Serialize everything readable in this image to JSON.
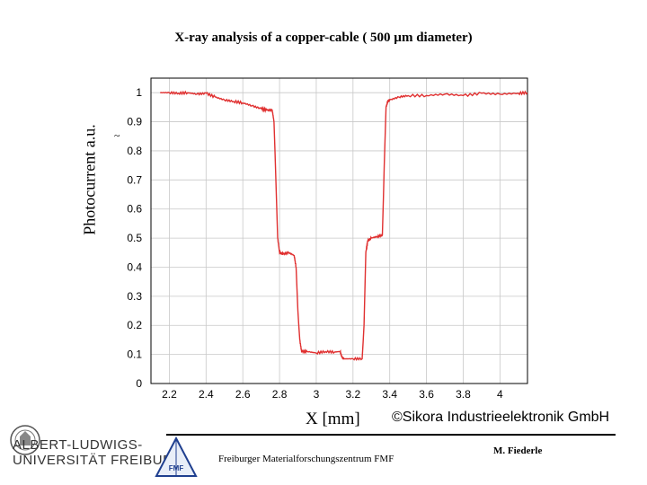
{
  "header": {
    "title": "X-ray analysis of a copper-cable ( 500 µm diameter)"
  },
  "axes": {
    "ylabel": "Photocurrent a.u.",
    "xlabel": "X [mm]",
    "stray_mark": "~"
  },
  "footer": {
    "credit": "©Sikora Industrieelektronik GmbH",
    "university_line1": "ALBERT-LUDWIGS-",
    "university_line2": "UNIVERSITÄT FREIBURG",
    "fmf_logo_text": "FMF",
    "center": "Freiburger Materialforschungszentrum FMF",
    "author": "M. Fiederle"
  },
  "colors": {
    "line": "#e03030",
    "grid": "#c8c8c8",
    "axis": "#000000"
  },
  "chart_data": {
    "type": "line",
    "title": "X-ray analysis of a copper-cable ( 500 µm diameter)",
    "xlabel": "X [mm]",
    "ylabel": "Photocurrent a.u.",
    "xlim": [
      2.1,
      4.15
    ],
    "ylim": [
      0,
      1.05
    ],
    "xticks": [
      2.2,
      2.4,
      2.6,
      2.8,
      3,
      3.2,
      3.4,
      3.6,
      3.8,
      4
    ],
    "yticks": [
      0,
      0.1,
      0.2,
      0.3,
      0.4,
      0.5,
      0.6,
      0.7,
      0.8,
      0.9,
      1
    ],
    "grid": true,
    "series": [
      {
        "x": [
          2.15,
          2.2,
          2.25,
          2.3,
          2.35,
          2.4,
          2.45,
          2.5,
          2.55,
          2.6,
          2.65,
          2.7,
          2.73,
          2.76,
          2.77,
          2.78,
          2.79,
          2.8,
          2.82,
          2.85,
          2.88,
          2.89,
          2.9,
          2.91,
          2.92,
          2.95,
          3.0,
          3.05,
          3.1,
          3.13,
          3.14,
          3.15,
          3.2,
          3.25,
          3.26,
          3.27,
          3.28,
          3.3,
          3.33,
          3.36,
          3.37,
          3.38,
          3.39,
          3.4,
          3.45,
          3.5,
          3.6,
          3.7,
          3.8,
          3.9,
          4.0,
          4.1,
          4.15
        ],
        "y": [
          1.0,
          1.0,
          0.998,
          1.0,
          0.995,
          0.998,
          0.985,
          0.975,
          0.97,
          0.965,
          0.955,
          0.945,
          0.94,
          0.94,
          0.9,
          0.7,
          0.5,
          0.45,
          0.445,
          0.45,
          0.44,
          0.4,
          0.25,
          0.15,
          0.11,
          0.11,
          0.105,
          0.11,
          0.108,
          0.11,
          0.09,
          0.085,
          0.085,
          0.085,
          0.2,
          0.45,
          0.49,
          0.5,
          0.505,
          0.51,
          0.75,
          0.95,
          0.97,
          0.975,
          0.985,
          0.99,
          0.99,
          0.995,
          0.99,
          0.998,
          0.995,
          0.998,
          1.0
        ]
      }
    ]
  }
}
